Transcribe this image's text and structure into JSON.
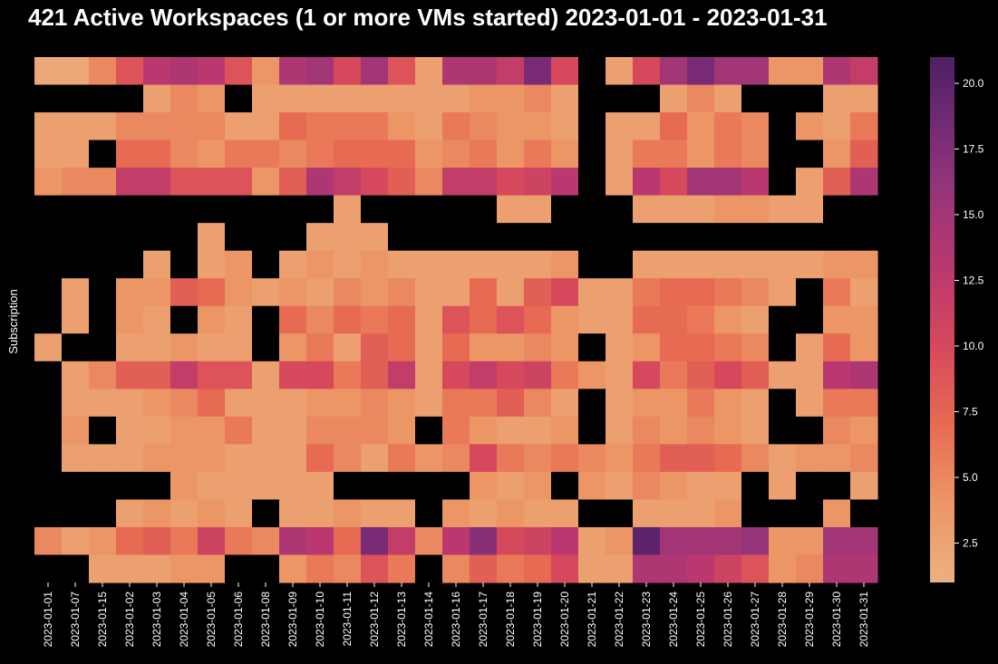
{
  "chart_data": {
    "type": "heatmap",
    "title": "421 Active Workspaces (1 or more VMs started) 2023-01-01 - 2023-01-31",
    "xlabel": "",
    "ylabel": "Subscription",
    "x": [
      "2023-01-01",
      "2023-01-07",
      "2023-01-15",
      "2023-01-02",
      "2023-01-03",
      "2023-01-04",
      "2023-01-05",
      "2023-01-06",
      "2023-01-08",
      "2023-01-09",
      "2023-01-10",
      "2023-01-11",
      "2023-01-12",
      "2023-01-13",
      "2023-01-14",
      "2023-01-16",
      "2023-01-17",
      "2023-01-18",
      "2023-01-19",
      "2023-01-20",
      "2023-01-21",
      "2023-01-22",
      "2023-01-23",
      "2023-01-24",
      "2023-01-25",
      "2023-01-26",
      "2023-01-27",
      "2023-01-28",
      "2023-01-29",
      "2023-01-30",
      "2023-01-31"
    ],
    "colorbar": {
      "min": 1,
      "max": 21,
      "ticks": [
        2.5,
        5.0,
        7.5,
        10.0,
        12.5,
        15.0,
        17.5,
        20.0
      ],
      "colormap": "flare"
    },
    "missing_color": "#000000",
    "values": [
      [
        2,
        2,
        5,
        9,
        13,
        14,
        13,
        9,
        4,
        14,
        15,
        10,
        15,
        9,
        3,
        14,
        14,
        12,
        18,
        10,
        null,
        3,
        10,
        15,
        18,
        15,
        15,
        4,
        4,
        14,
        12
      ],
      [
        null,
        null,
        null,
        null,
        3,
        5,
        4,
        null,
        3,
        3,
        3,
        3,
        3,
        3,
        3,
        3,
        4,
        4,
        5,
        3,
        null,
        null,
        null,
        3,
        5,
        3,
        null,
        null,
        null,
        3,
        3
      ],
      [
        3,
        3,
        3,
        5,
        5,
        5,
        5,
        3,
        3,
        7,
        6,
        6,
        6,
        4,
        3,
        6,
        5,
        4,
        4,
        3,
        null,
        3,
        3,
        7,
        4,
        6,
        5,
        null,
        4,
        3,
        6
      ],
      [
        3,
        3,
        null,
        7,
        7,
        5,
        4,
        6,
        6,
        5,
        6,
        7,
        7,
        7,
        4,
        5,
        6,
        4,
        6,
        4,
        null,
        3,
        6,
        6,
        4,
        6,
        5,
        null,
        null,
        4,
        8
      ],
      [
        4,
        5,
        5,
        12,
        12,
        9,
        9,
        9,
        4,
        8,
        14,
        12,
        10,
        8,
        5,
        12,
        12,
        10,
        11,
        13,
        null,
        3,
        13,
        10,
        15,
        15,
        13,
        null,
        3,
        8,
        14
      ],
      [
        null,
        null,
        null,
        null,
        null,
        null,
        null,
        null,
        null,
        null,
        null,
        3,
        null,
        null,
        null,
        null,
        null,
        3,
        3,
        null,
        null,
        null,
        3,
        3,
        3,
        4,
        4,
        3,
        3,
        null,
        null
      ],
      [
        null,
        null,
        null,
        null,
        null,
        null,
        3,
        null,
        null,
        null,
        3,
        3,
        3,
        null,
        null,
        null,
        null,
        null,
        null,
        null,
        null,
        null,
        null,
        null,
        null,
        null,
        null,
        null,
        null,
        null,
        null
      ],
      [
        null,
        null,
        null,
        null,
        3,
        null,
        3,
        4,
        null,
        3,
        4,
        3,
        4,
        3,
        3,
        3,
        3,
        3,
        3,
        4,
        null,
        null,
        3,
        3,
        3,
        3,
        3,
        3,
        3,
        4,
        4
      ],
      [
        null,
        3,
        null,
        4,
        4,
        8,
        7,
        4,
        3,
        4,
        3,
        5,
        4,
        5,
        3,
        3,
        7,
        3,
        8,
        10,
        3,
        3,
        6,
        7,
        7,
        6,
        5,
        3,
        null,
        6,
        3
      ],
      [
        null,
        3,
        null,
        4,
        3,
        null,
        4,
        3,
        null,
        7,
        5,
        7,
        6,
        7,
        3,
        9,
        7,
        9,
        7,
        4,
        3,
        3,
        7,
        7,
        6,
        4,
        3,
        null,
        null,
        4,
        4
      ],
      [
        3,
        null,
        null,
        3,
        3,
        4,
        3,
        3,
        null,
        4,
        6,
        3,
        8,
        7,
        3,
        7,
        4,
        4,
        5,
        4,
        null,
        3,
        4,
        7,
        7,
        6,
        5,
        null,
        3,
        7,
        4
      ],
      [
        null,
        3,
        5,
        8,
        8,
        12,
        9,
        9,
        3,
        10,
        10,
        6,
        8,
        12,
        3,
        10,
        12,
        10,
        11,
        6,
        4,
        3,
        10,
        6,
        8,
        10,
        8,
        3,
        3,
        13,
        14
      ],
      [
        null,
        3,
        3,
        3,
        4,
        5,
        7,
        3,
        3,
        3,
        4,
        4,
        5,
        4,
        3,
        6,
        6,
        8,
        5,
        3,
        null,
        3,
        4,
        4,
        6,
        4,
        3,
        null,
        3,
        6,
        6
      ],
      [
        null,
        4,
        null,
        3,
        3,
        4,
        4,
        6,
        3,
        3,
        5,
        5,
        5,
        4,
        null,
        6,
        4,
        3,
        3,
        4,
        null,
        3,
        5,
        4,
        5,
        4,
        3,
        null,
        null,
        5,
        4
      ],
      [
        null,
        3,
        3,
        3,
        4,
        4,
        4,
        3,
        3,
        3,
        7,
        5,
        3,
        6,
        4,
        5,
        10,
        6,
        5,
        6,
        5,
        4,
        6,
        8,
        8,
        7,
        5,
        3,
        4,
        4,
        5
      ],
      [
        null,
        null,
        null,
        null,
        null,
        4,
        3,
        3,
        3,
        3,
        3,
        null,
        null,
        null,
        null,
        null,
        4,
        3,
        4,
        null,
        4,
        3,
        5,
        4,
        3,
        3,
        null,
        3,
        null,
        null,
        3
      ],
      [
        null,
        null,
        null,
        3,
        4,
        3,
        4,
        3,
        null,
        3,
        3,
        4,
        3,
        3,
        null,
        4,
        3,
        4,
        3,
        3,
        null,
        null,
        3,
        3,
        3,
        4,
        null,
        null,
        null,
        4,
        null
      ],
      [
        5,
        3,
        4,
        7,
        8,
        6,
        11,
        6,
        5,
        14,
        13,
        7,
        18,
        12,
        5,
        13,
        17,
        10,
        11,
        13,
        3,
        4,
        20,
        15,
        15,
        15,
        16,
        4,
        4,
        15,
        15
      ],
      [
        null,
        null,
        3,
        3,
        3,
        4,
        4,
        null,
        null,
        4,
        6,
        5,
        9,
        6,
        null,
        5,
        8,
        6,
        7,
        10,
        3,
        3,
        14,
        14,
        13,
        11,
        9,
        4,
        5,
        14,
        14
      ]
    ]
  }
}
